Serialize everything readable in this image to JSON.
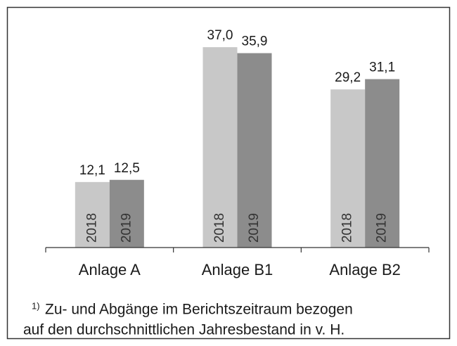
{
  "chart_data": {
    "type": "bar",
    "categories": [
      "Anlage A",
      "Anlage B1",
      "Anlage B2"
    ],
    "series": [
      {
        "name": "2018",
        "color": "#c8c8c8",
        "values": [
          12.1,
          37.0,
          29.2
        ],
        "value_labels": [
          "12,1",
          "37,0",
          "29,2"
        ]
      },
      {
        "name": "2019",
        "color": "#8c8c8c",
        "values": [
          12.5,
          35.9,
          31.1
        ],
        "value_labels": [
          "12,5",
          "35,9",
          "31,1"
        ]
      }
    ],
    "ylim": [
      0,
      40
    ],
    "footnote_marker": "1)",
    "footnote": [
      "Zu- und Abgänge im Berichtszeitraum bezogen",
      "auf den durchschnittlichen Jahresbestand in v. H."
    ]
  }
}
